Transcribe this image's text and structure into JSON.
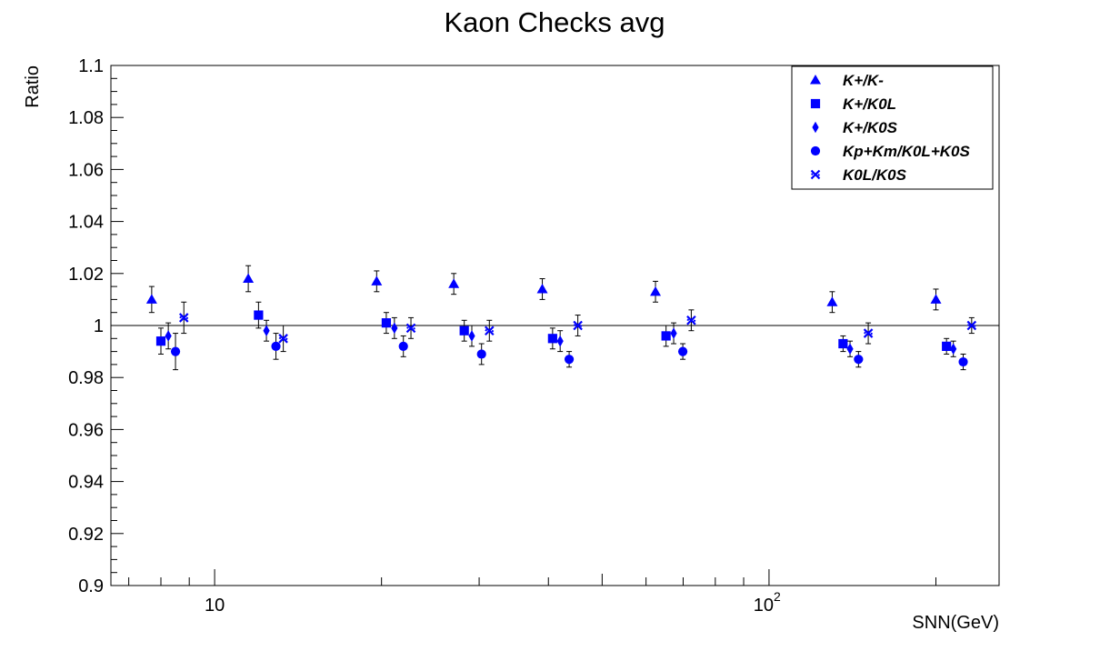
{
  "colors": {
    "marker": "#0000ff",
    "axis": "#000000",
    "background": "#ffffff"
  },
  "chart_data": {
    "type": "scatter",
    "title": "Kaon Checks avg",
    "xlabel": "SNN(GeV)",
    "ylabel": "Ratio",
    "xscale": "log",
    "xlim": [
      6.5,
      260
    ],
    "ylim": [
      0.9,
      1.1
    ],
    "y_ticks": [
      "0.9",
      "0.92",
      "0.94",
      "0.96",
      "0.98",
      "1",
      "1.02",
      "1.04",
      "1.06",
      "1.08",
      "1.1"
    ],
    "x_ticks": [
      {
        "value": 10,
        "label": "10"
      },
      {
        "value": 100,
        "label": "10",
        "exp": "2"
      }
    ],
    "reference_line": 1.0,
    "grid": false,
    "legend_position": "top-right",
    "series": [
      {
        "name": "K+/K-",
        "marker": "triangle",
        "points": [
          {
            "x": 7.7,
            "y": 1.01,
            "err": 0.005
          },
          {
            "x": 11.5,
            "y": 1.018,
            "err": 0.005
          },
          {
            "x": 19.6,
            "y": 1.017,
            "err": 0.004
          },
          {
            "x": 27,
            "y": 1.016,
            "err": 0.004
          },
          {
            "x": 39,
            "y": 1.014,
            "err": 0.004
          },
          {
            "x": 62.4,
            "y": 1.013,
            "err": 0.004
          },
          {
            "x": 130,
            "y": 1.009,
            "err": 0.004
          },
          {
            "x": 200,
            "y": 1.01,
            "err": 0.004
          }
        ]
      },
      {
        "name": "K+/K0L",
        "marker": "square",
        "points": [
          {
            "x": 8.0,
            "y": 0.994,
            "err": 0.005
          },
          {
            "x": 12.0,
            "y": 1.004,
            "err": 0.005
          },
          {
            "x": 20.4,
            "y": 1.001,
            "err": 0.004
          },
          {
            "x": 28.2,
            "y": 0.998,
            "err": 0.004
          },
          {
            "x": 40.7,
            "y": 0.995,
            "err": 0.004
          },
          {
            "x": 65.2,
            "y": 0.996,
            "err": 0.004
          },
          {
            "x": 136,
            "y": 0.993,
            "err": 0.003
          },
          {
            "x": 209,
            "y": 0.992,
            "err": 0.003
          }
        ]
      },
      {
        "name": "K+/K0S",
        "marker": "diamond",
        "points": [
          {
            "x": 8.25,
            "y": 0.996,
            "err": 0.005
          },
          {
            "x": 12.4,
            "y": 0.998,
            "err": 0.004
          },
          {
            "x": 21.1,
            "y": 0.999,
            "err": 0.004
          },
          {
            "x": 29.1,
            "y": 0.996,
            "err": 0.004
          },
          {
            "x": 42.0,
            "y": 0.994,
            "err": 0.004
          },
          {
            "x": 67.3,
            "y": 0.997,
            "err": 0.004
          },
          {
            "x": 140,
            "y": 0.991,
            "err": 0.003
          },
          {
            "x": 215,
            "y": 0.991,
            "err": 0.003
          }
        ]
      },
      {
        "name": "Kp+Km/K0L+K0S",
        "marker": "circle",
        "points": [
          {
            "x": 8.5,
            "y": 0.99,
            "err": 0.007
          },
          {
            "x": 12.9,
            "y": 0.992,
            "err": 0.005
          },
          {
            "x": 21.9,
            "y": 0.992,
            "err": 0.004
          },
          {
            "x": 30.3,
            "y": 0.989,
            "err": 0.004
          },
          {
            "x": 43.6,
            "y": 0.987,
            "err": 0.003
          },
          {
            "x": 69.9,
            "y": 0.99,
            "err": 0.003
          },
          {
            "x": 145,
            "y": 0.987,
            "err": 0.003
          },
          {
            "x": 224,
            "y": 0.986,
            "err": 0.003
          }
        ]
      },
      {
        "name": "K0L/K0S",
        "marker": "cross",
        "points": [
          {
            "x": 8.8,
            "y": 1.003,
            "err": 0.006
          },
          {
            "x": 13.3,
            "y": 0.995,
            "err": 0.005
          },
          {
            "x": 22.6,
            "y": 0.999,
            "err": 0.004
          },
          {
            "x": 31.3,
            "y": 0.998,
            "err": 0.004
          },
          {
            "x": 45.2,
            "y": 1.0,
            "err": 0.004
          },
          {
            "x": 72.4,
            "y": 1.002,
            "err": 0.004
          },
          {
            "x": 151,
            "y": 0.997,
            "err": 0.004
          },
          {
            "x": 232,
            "y": 1.0,
            "err": 0.003
          }
        ]
      }
    ]
  }
}
